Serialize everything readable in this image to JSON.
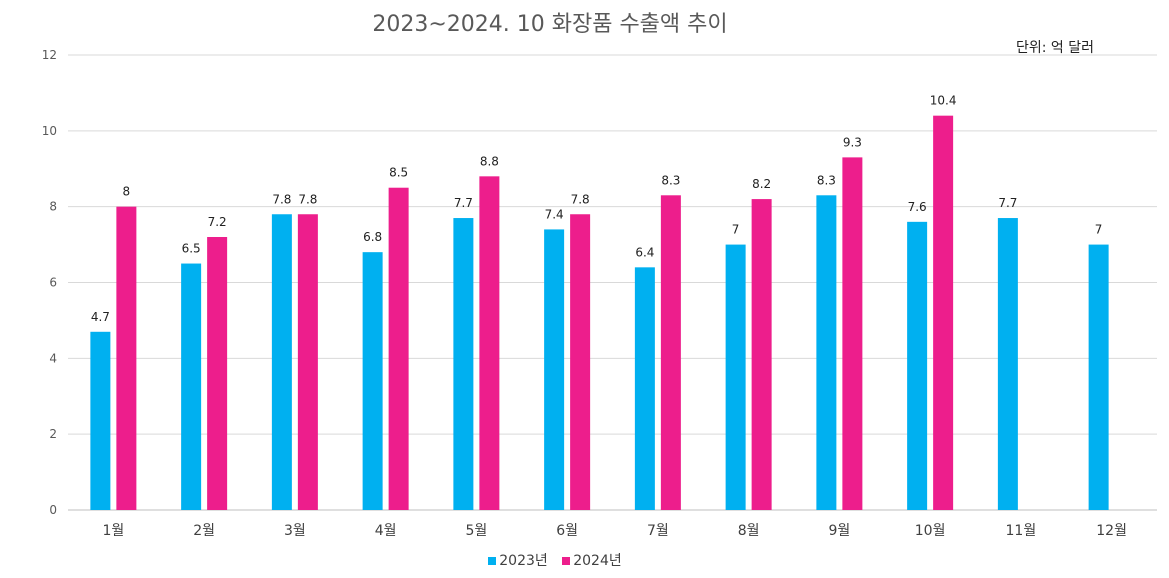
{
  "chart_data": {
    "type": "bar",
    "title": "2023~2024. 10  화장품 수출액 추이",
    "unit": "단위: 억 달러",
    "categories": [
      "1월",
      "2월",
      "3월",
      "4월",
      "5월",
      "6월",
      "7월",
      "8월",
      "9월",
      "10월",
      "11월",
      "12월"
    ],
    "series": [
      {
        "name": "2023년",
        "color": "#00b0f0",
        "values": [
          4.7,
          6.5,
          7.8,
          6.8,
          7.7,
          7.4,
          6.4,
          7,
          8.3,
          7.6,
          7.7,
          7
        ]
      },
      {
        "name": "2024년",
        "color": "#ed1e8c",
        "values": [
          8,
          7.2,
          7.8,
          8.5,
          8.8,
          7.8,
          8.3,
          8.2,
          9.3,
          10.4,
          null,
          null
        ]
      }
    ],
    "ylim": [
      0,
      12
    ],
    "yticks": [
      0,
      2,
      4,
      6,
      8,
      10,
      12
    ],
    "grid": true,
    "legend": "bottom"
  }
}
